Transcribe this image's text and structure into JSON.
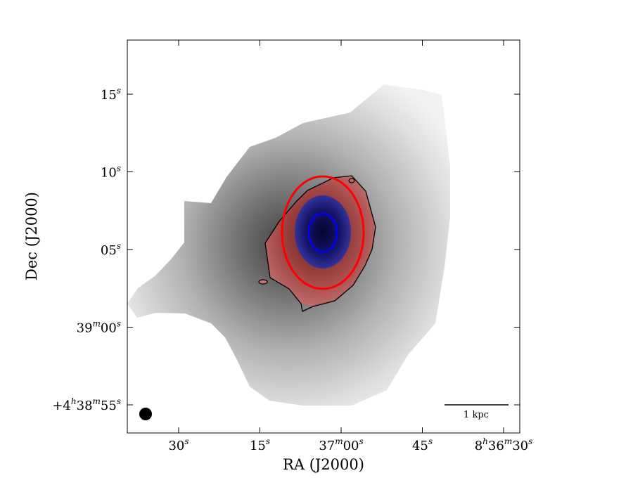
{
  "chart_data": {
    "type": "image",
    "xlabel": "RA (J2000)",
    "ylabel": "Dec (J2000)",
    "x_ticks": [
      {
        "value_s": 30,
        "label_main": "30",
        "label_sup": "s",
        "prefix": ""
      },
      {
        "value_s": 15,
        "label_main": "15",
        "label_sup": "s",
        "prefix": ""
      },
      {
        "value_s": 0,
        "label_main": "37",
        "label_sup": "m",
        "label_main2": "00",
        "label_sup2": "s",
        "prefix": ""
      },
      {
        "value_s": -15,
        "label_main": "45",
        "label_sup": "s",
        "prefix": ""
      },
      {
        "value_s": -30,
        "label_main": "8",
        "label_sup": "h",
        "label_main2": "36",
        "label_sup2": "m",
        "label_main3": "30",
        "label_sup3": "s",
        "prefix": ""
      }
    ],
    "y_ticks": [
      {
        "value_s": 15,
        "label_main": "15",
        "label_sup": "s"
      },
      {
        "value_s": 10,
        "label_main": "10",
        "label_sup": "s"
      },
      {
        "value_s": 5,
        "label_main": "05",
        "label_sup": "s"
      },
      {
        "value_s": 0,
        "label_main": "39",
        "label_sup": "m",
        "label_main2": "00",
        "label_sup2": "s"
      },
      {
        "value_s": -5,
        "label_main": "+4",
        "label_sup": "h",
        "label_main2": "38",
        "label_sup2": "m",
        "label_main3": "55",
        "label_sup3": "s"
      }
    ],
    "scalebar": {
      "label": "1 kpc"
    },
    "colors": {
      "background_emission": "#8a8a8a",
      "red_region": "#c0504d",
      "blue_region": "#22228a",
      "red_ellipse": "#ff0000",
      "blue_ellipse": "#0000ff",
      "contour": "#000000",
      "beam": "#000000"
    }
  }
}
